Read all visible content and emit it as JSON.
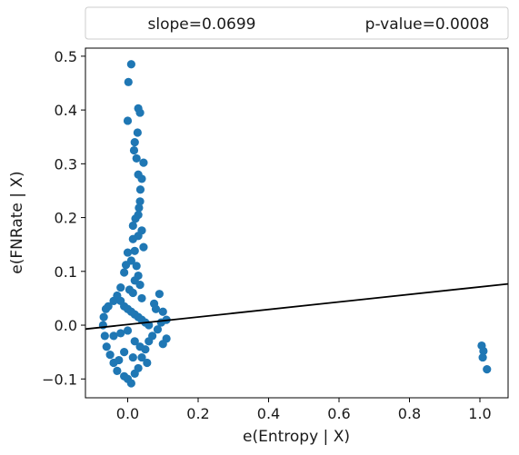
{
  "chart_data": {
    "type": "scatter",
    "xlabel": "e(Entropy | X)",
    "ylabel": "e(FNRate | X)",
    "xlim": [
      -0.12,
      1.08
    ],
    "ylim": [
      -0.135,
      0.515
    ],
    "x_ticks": [
      0.0,
      0.2,
      0.4,
      0.6,
      0.8,
      1.0
    ],
    "x_tick_labels": [
      "0.0",
      "0.2",
      "0.4",
      "0.6",
      "0.8",
      "1.0"
    ],
    "y_ticks": [
      -0.1,
      0.0,
      0.1,
      0.2,
      0.3,
      0.4,
      0.5
    ],
    "y_tick_labels": [
      "−0.1",
      "0.0",
      "0.1",
      "0.2",
      "0.3",
      "0.4",
      "0.5"
    ],
    "legend": {
      "placement": "top",
      "slope_text": "slope=0.0699",
      "pvalue_text": "p-value=0.0008"
    },
    "marker_color": "#1f77b4",
    "line_color": "#000000",
    "fit_line": {
      "slope": 0.0699,
      "intercept": 0.0012
    },
    "grid": false,
    "points": [
      [
        0.01,
        0.485
      ],
      [
        0.002,
        0.452
      ],
      [
        0.03,
        0.403
      ],
      [
        0.035,
        0.395
      ],
      [
        0.0,
        0.38
      ],
      [
        0.028,
        0.358
      ],
      [
        0.02,
        0.34
      ],
      [
        0.018,
        0.325
      ],
      [
        0.025,
        0.31
      ],
      [
        0.045,
        0.302
      ],
      [
        0.03,
        0.28
      ],
      [
        0.04,
        0.272
      ],
      [
        0.036,
        0.252
      ],
      [
        0.035,
        0.23
      ],
      [
        0.032,
        0.218
      ],
      [
        0.03,
        0.205
      ],
      [
        0.022,
        0.198
      ],
      [
        0.015,
        0.185
      ],
      [
        0.04,
        0.176
      ],
      [
        0.03,
        0.166
      ],
      [
        0.015,
        0.16
      ],
      [
        0.045,
        0.145
      ],
      [
        0.02,
        0.138
      ],
      [
        0.0,
        0.135
      ],
      [
        0.01,
        0.12
      ],
      [
        -0.005,
        0.112
      ],
      [
        0.025,
        0.11
      ],
      [
        -0.01,
        0.098
      ],
      [
        0.03,
        0.092
      ],
      [
        0.02,
        0.083
      ],
      [
        0.035,
        0.075
      ],
      [
        0.005,
        0.066
      ],
      [
        0.015,
        0.06
      ],
      [
        -0.02,
        0.07
      ],
      [
        0.04,
        0.05
      ],
      [
        0.09,
        0.058
      ],
      [
        0.075,
        0.04
      ],
      [
        0.08,
        0.03
      ],
      [
        0.1,
        0.025
      ],
      [
        0.11,
        0.01
      ],
      [
        0.095,
        0.005
      ],
      [
        0.085,
        -0.008
      ],
      [
        0.07,
        -0.02
      ],
      [
        0.11,
        -0.025
      ],
      [
        0.1,
        -0.035
      ],
      [
        0.06,
        -0.03
      ],
      [
        0.05,
        -0.045
      ],
      [
        0.04,
        -0.06
      ],
      [
        0.055,
        -0.07
      ],
      [
        0.03,
        -0.08
      ],
      [
        0.02,
        -0.09
      ],
      [
        0.0,
        -0.1
      ],
      [
        0.01,
        -0.108
      ],
      [
        -0.01,
        -0.095
      ],
      [
        -0.03,
        -0.085
      ],
      [
        -0.04,
        -0.07
      ],
      [
        -0.05,
        -0.055
      ],
      [
        -0.06,
        -0.04
      ],
      [
        -0.065,
        -0.02
      ],
      [
        -0.07,
        0.0
      ],
      [
        -0.068,
        0.015
      ],
      [
        -0.062,
        0.03
      ],
      [
        -0.055,
        0.035
      ],
      [
        -0.04,
        0.045
      ],
      [
        -0.03,
        0.055
      ],
      [
        -0.02,
        0.045
      ],
      [
        -0.01,
        0.035
      ],
      [
        0.0,
        0.03
      ],
      [
        0.01,
        0.025
      ],
      [
        0.02,
        0.02
      ],
      [
        0.03,
        0.015
      ],
      [
        0.04,
        0.01
      ],
      [
        0.05,
        0.005
      ],
      [
        0.06,
        0.0
      ],
      [
        0.0,
        -0.01
      ],
      [
        -0.02,
        -0.015
      ],
      [
        -0.04,
        -0.02
      ],
      [
        0.02,
        -0.03
      ],
      [
        0.035,
        -0.04
      ],
      [
        -0.01,
        -0.05
      ],
      [
        0.015,
        -0.06
      ],
      [
        -0.025,
        -0.065
      ],
      [
        1.005,
        -0.038
      ],
      [
        1.01,
        -0.048
      ],
      [
        1.008,
        -0.06
      ],
      [
        1.02,
        -0.082
      ]
    ]
  }
}
